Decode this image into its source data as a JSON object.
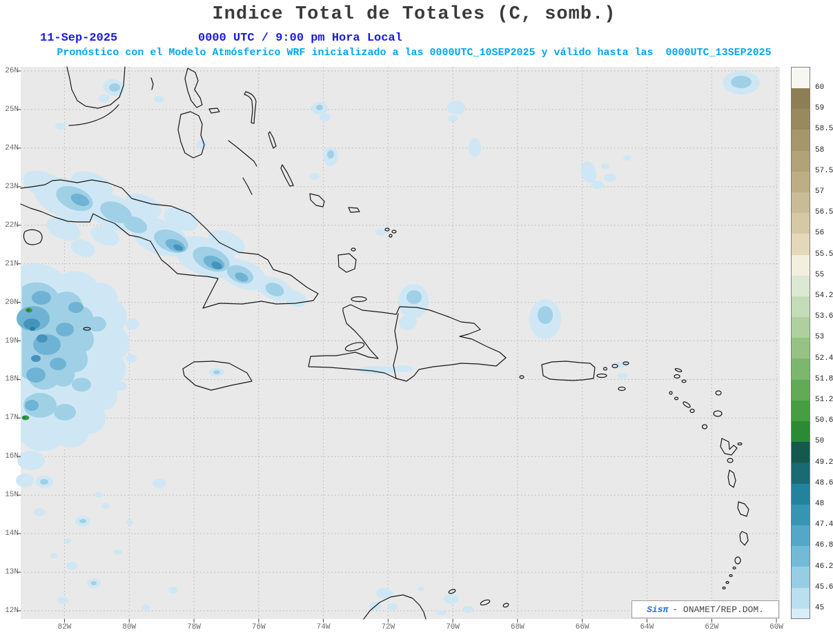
{
  "header": {
    "title": "Indice Total de Totales (C, somb.)",
    "date": "11-Sep-2025",
    "time": "0000 UTC / 9:00 pm Hora Local",
    "subtitle": "Pronóstico con el Modelo Atmósferico WRF inicializado a las 0000UTC_10SEP2025 y válido hasta las  0000UTC_13SEP2025",
    "title_color": "#3a3a3a",
    "date_color": "#1a1ae0",
    "subtitle_color": "#00a6ef"
  },
  "map": {
    "lat_labels": [
      "26N",
      "25N",
      "24N",
      "23N",
      "22N",
      "21N",
      "20N",
      "19N",
      "18N",
      "17N",
      "16N",
      "15N",
      "14N",
      "13N",
      "12N"
    ],
    "lon_labels": [
      "82W",
      "80W",
      "78W",
      "76W",
      "74W",
      "72W",
      "70W",
      "68W",
      "66W",
      "64W",
      "62W",
      "60W"
    ],
    "attribution": {
      "brand": "Sisπ",
      "rest": "- ONAMET/REP.DOM."
    }
  },
  "colorbar": {
    "ticks": [
      "60",
      "59",
      "58.5",
      "58",
      "57.5",
      "57",
      "56.5",
      "56",
      "55.5",
      "55",
      "54.2",
      "53.6",
      "53",
      "52.4",
      "51.8",
      "51.2",
      "50.6",
      "50",
      "49.2",
      "48.6",
      "48",
      "47.4",
      "46.8",
      "46.2",
      "45.6",
      "45"
    ],
    "segment_colors": [
      "#f7f6f0",
      "#8d7e55",
      "#99895f",
      "#a5966b",
      "#b1a278",
      "#bdae86",
      "#c9bb95",
      "#d5c8a5",
      "#e3d8b9",
      "#f2efdf",
      "#dce8d3",
      "#c5dcb8",
      "#aed09e",
      "#96c385",
      "#7db76d",
      "#63aa56",
      "#479d41",
      "#2b8a33",
      "#14584e",
      "#1a6a74",
      "#24839c",
      "#3795b4",
      "#54a7c6",
      "#74bad6",
      "#97cde4",
      "#badff0",
      "#d9edf8"
    ],
    "shading_levels": {
      "light_blue": "#cfe7f4",
      "mid_blue": "#9fd0e6",
      "blue": "#6fb3d4",
      "deep_blue": "#4493ba",
      "darkest_blue": "#2a7fa0",
      "green": "#3f9a44",
      "dark_green": "#1d7a2f"
    }
  }
}
